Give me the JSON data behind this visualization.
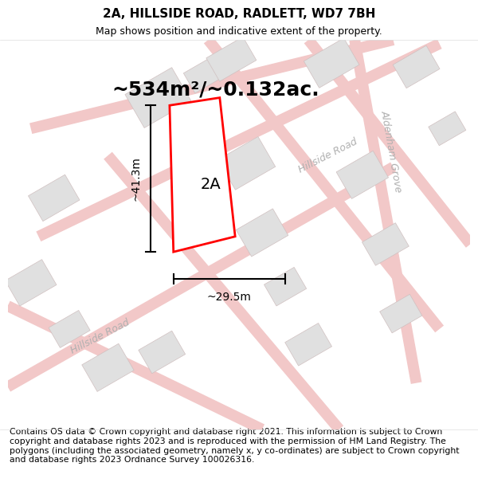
{
  "title": "2A, HILLSIDE ROAD, RADLETT, WD7 7BH",
  "subtitle": "Map shows position and indicative extent of the property.",
  "area_label": "~534m²/~0.132ac.",
  "width_label": "~29.5m",
  "height_label": "~41.3m",
  "plot_label": "2A",
  "footer": "Contains OS data © Crown copyright and database right 2021. This information is subject to Crown copyright and database rights 2023 and is reproduced with the permission of HM Land Registry. The polygons (including the associated geometry, namely x, y co-ordinates) are subject to Crown copyright and database rights 2023 Ordnance Survey 100026316.",
  "bg_color": "#ffffff",
  "map_bg": "#fdf8f8",
  "road_color": "#f2c8c8",
  "road_label_color": "#b0b0b0",
  "building_fill": "#e0e0e0",
  "building_edge": "#d0c0c0",
  "plot_color": "#ff0000",
  "plot_fill": "#ffffff",
  "title_fontsize": 11,
  "subtitle_fontsize": 9,
  "area_fontsize": 18,
  "dim_fontsize": 10,
  "road_fontsize": 9,
  "footer_fontsize": 7.8
}
